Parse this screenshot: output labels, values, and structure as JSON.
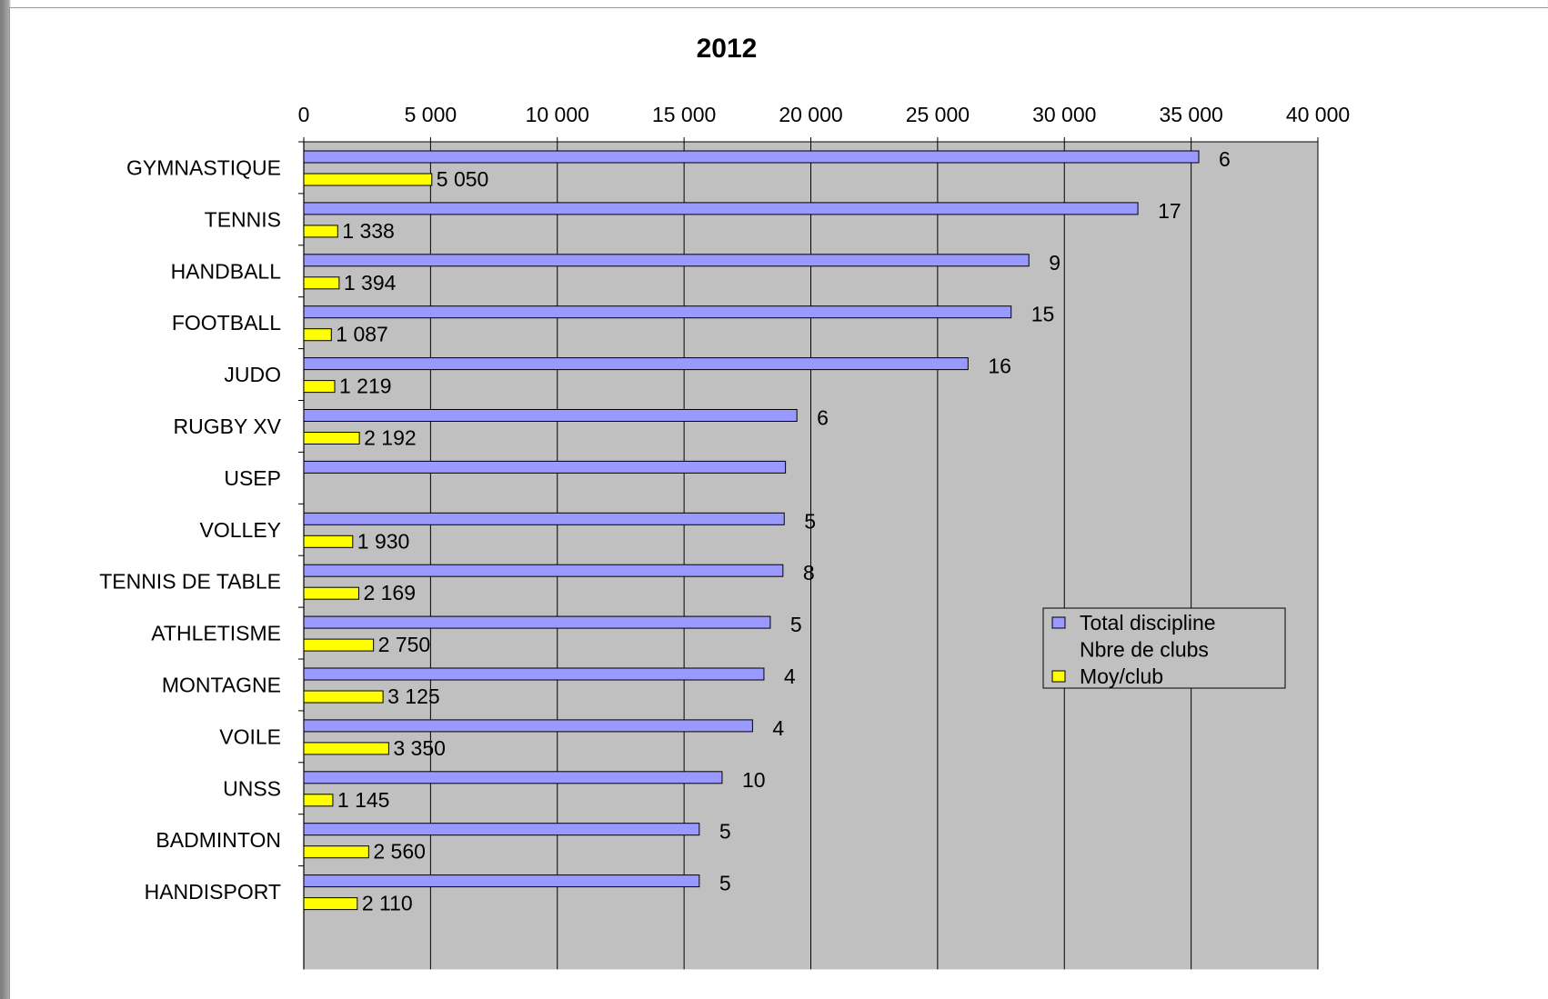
{
  "chart_data": {
    "type": "bar",
    "orientation": "horizontal",
    "title": "2012",
    "xlim": [
      0,
      40000
    ],
    "x_ticks": [
      "0",
      "5 000",
      "10 000",
      "15 000",
      "20 000",
      "25 000",
      "30 000",
      "35 000",
      "40 000"
    ],
    "grid": true,
    "legend_position": "right",
    "categories": [
      "GYMNASTIQUE",
      "TENNIS",
      "HANDBALL",
      "FOOTBALL",
      "JUDO",
      "RUGBY XV",
      "USEP",
      "VOLLEY",
      "TENNIS DE TABLE",
      "ATHLETISME",
      "MONTAGNE",
      "VOILE",
      "UNSS",
      "BADMINTON",
      "HANDISPORT"
    ],
    "series": [
      {
        "name": "Total discipline",
        "color": "#9999ff",
        "values": [
          35300,
          32900,
          28600,
          27900,
          26200,
          19450,
          19000,
          18950,
          18900,
          18400,
          18150,
          17700,
          16500,
          15600,
          15600
        ]
      },
      {
        "name": "Nbre de clubs",
        "color": "none",
        "values": [
          6,
          17,
          9,
          15,
          16,
          6,
          null,
          5,
          8,
          5,
          4,
          4,
          10,
          5,
          5
        ],
        "labels": [
          "6",
          "17",
          "9",
          "15",
          "16",
          "6",
          "",
          "5",
          "8",
          "5",
          "4",
          "4",
          "10",
          "5",
          "5"
        ]
      },
      {
        "name": "Moy/club",
        "color": "#ffff00",
        "values": [
          5050,
          1338,
          1394,
          1087,
          1219,
          2192,
          null,
          1930,
          2169,
          2750,
          3125,
          3350,
          1145,
          2560,
          2110
        ],
        "labels": [
          "5 050",
          "1 338",
          "1 394",
          "1 087",
          "1 219",
          "2 192",
          "",
          "1 930",
          "2 169",
          "2 750",
          "3 125",
          "3 350",
          "1 145",
          "2 560",
          "2 110"
        ]
      }
    ]
  }
}
